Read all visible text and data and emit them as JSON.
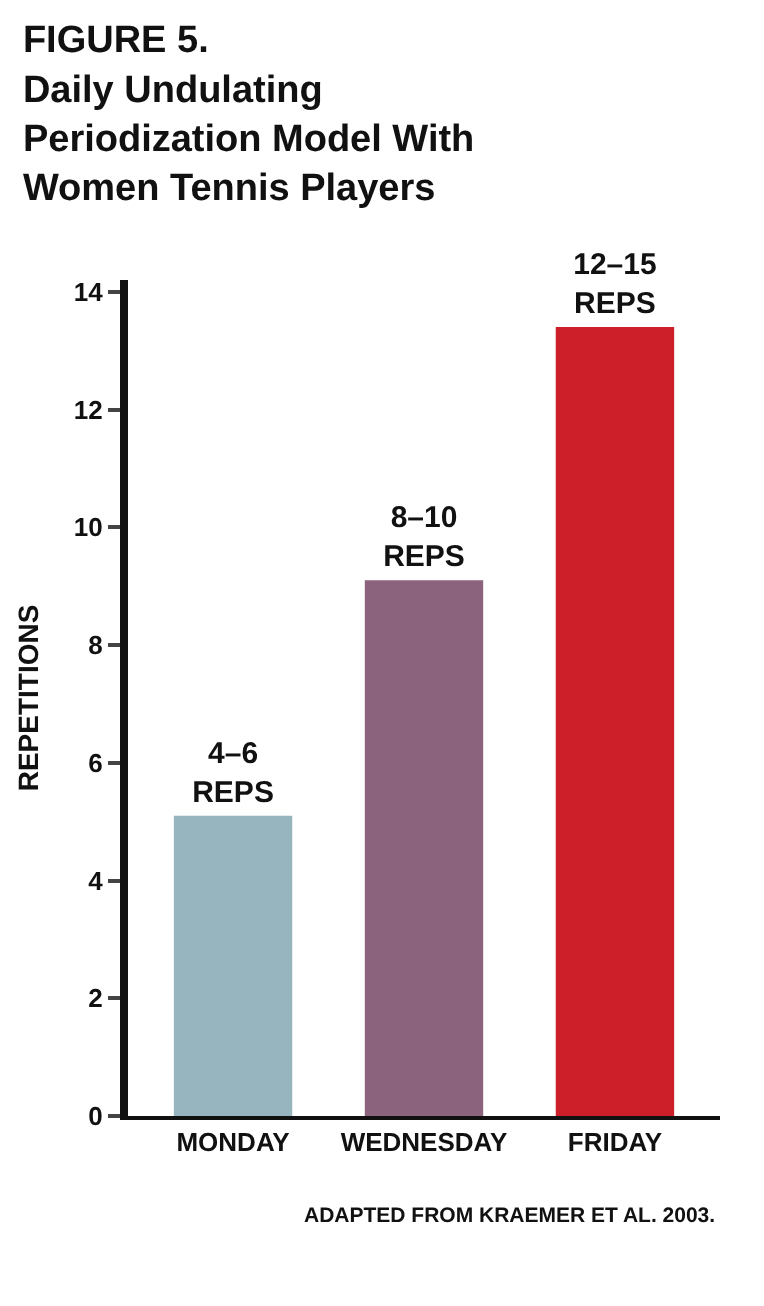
{
  "chart_data": {
    "type": "bar",
    "title": "FIGURE 5.\nDaily Undulating\nPeriodization Model With\nWomen Tennis Players",
    "ylabel": "REPETITIONS",
    "categories": [
      "MONDAY",
      "WEDNESDAY",
      "FRIDAY"
    ],
    "values": [
      5.1,
      9.1,
      13.4
    ],
    "colors": [
      "#97b5bf",
      "#8c637c",
      "#cc1f2a"
    ],
    "value_labels": [
      "4–6\nREPS",
      "8–10\nREPS",
      "12–15\nREPS"
    ],
    "ylim": [
      0,
      14.2
    ],
    "yticks": [
      0,
      2,
      4,
      6,
      8,
      10,
      12,
      14
    ],
    "legend": false,
    "annotations": [
      "ADAPTED FROM KRAEMER ET AL. 2003."
    ]
  }
}
